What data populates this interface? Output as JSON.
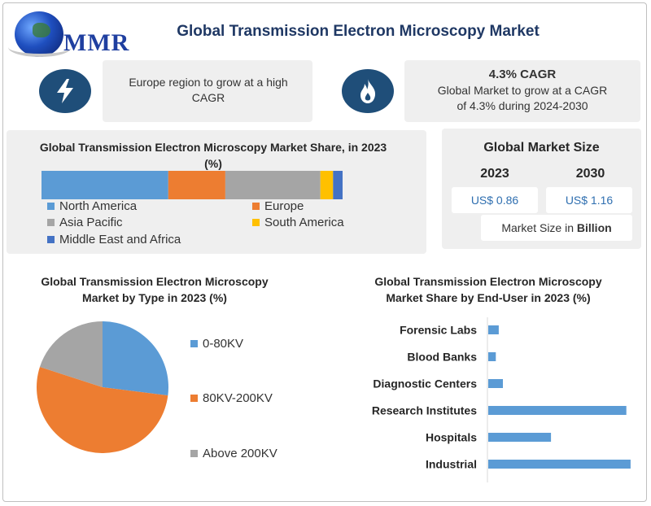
{
  "logo": {
    "text": "MMR"
  },
  "title": "Global Transmission Electron Microscopy Market",
  "highlights": {
    "left": {
      "icon": "lightning-icon",
      "text": "Europe region to grow at a high CAGR"
    },
    "right": {
      "icon": "flame-icon",
      "heading": "4.3% CAGR",
      "text": "Global Market to grow at a CAGR of 4.3% during 2024-2030"
    }
  },
  "market_size": {
    "title": "Global Market Size",
    "year_a": "2023",
    "year_b": "2030",
    "value_a": "US$ 0.86",
    "value_b": "US$ 1.16",
    "note_prefix": "Market Size in",
    "note_bold": "Billion"
  },
  "colors": {
    "navy": "#1f4e79",
    "blue": "#5b9bd5",
    "orange": "#ed7d31",
    "gray": "#a5a5a5",
    "yellow": "#ffc000",
    "darkblue": "#4472c4"
  },
  "chart_data": [
    {
      "type": "bar",
      "orientation": "horizontal-stacked-100",
      "title": "Global Transmission Electron Microscopy Market Share, in 2023 (%)",
      "series": [
        {
          "name": "North America",
          "values": [
            40
          ],
          "color": "#5b9bd5"
        },
        {
          "name": "Europe",
          "values": [
            18
          ],
          "color": "#ed7d31"
        },
        {
          "name": "Asia Pacific",
          "values": [
            30
          ],
          "color": "#a5a5a5"
        },
        {
          "name": "South America",
          "values": [
            4
          ],
          "color": "#ffc000"
        },
        {
          "name": "Middle East and Africa",
          "values": [
            3
          ],
          "color": "#4472c4"
        }
      ],
      "legend": "bottom"
    },
    {
      "type": "pie",
      "title": "Global Transmission Electron Microscopy Market by Type in 2023 (%)",
      "categories": [
        "0-80KV",
        "80KV-200KV",
        "Above 200KV"
      ],
      "values": [
        27,
        53,
        20
      ],
      "colors": [
        "#5b9bd5",
        "#ed7d31",
        "#a5a5a5"
      ],
      "legend": "right"
    },
    {
      "type": "bar",
      "orientation": "horizontal",
      "title": "Global Transmission Electron Microscopy Market Share by End-User in 2023 (%)",
      "categories": [
        "Forensic Labs",
        "Blood Banks",
        "Diagnostic Centers",
        "Research Institutes",
        "Hospitals",
        "Industrial"
      ],
      "values": [
        2.5,
        1.8,
        3.5,
        33,
        15,
        34
      ],
      "xlim": [
        0,
        35
      ],
      "color": "#5b9bd5"
    }
  ]
}
